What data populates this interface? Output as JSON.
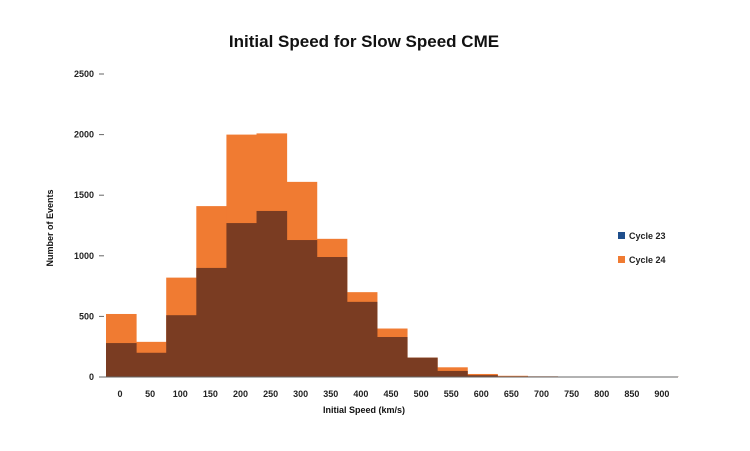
{
  "chart_data": {
    "type": "bar",
    "title": "Initial Speed for Slow Speed CME",
    "xlabel": "Initial Speed (km/s)",
    "ylabel": "Number of Events",
    "ylim": [
      0,
      2500
    ],
    "yticks": [
      "0",
      "500",
      "1000",
      "1500",
      "2000",
      "2500"
    ],
    "categories": [
      "0",
      "50",
      "100",
      "150",
      "200",
      "250",
      "300",
      "350",
      "400",
      "450",
      "500",
      "550",
      "600",
      "650",
      "700",
      "750",
      "800",
      "850",
      "900"
    ],
    "series": [
      {
        "name": "Cycle 23",
        "color": "#1f4e8c",
        "values": [
          280,
          200,
          510,
          900,
          1270,
          1370,
          1130,
          990,
          620,
          330,
          160,
          50,
          15,
          5,
          5,
          3,
          2,
          2,
          2
        ]
      },
      {
        "name": "Cycle 24",
        "color": "#f07b32",
        "values": [
          520,
          290,
          820,
          1410,
          2000,
          2010,
          1610,
          1140,
          700,
          400,
          160,
          80,
          25,
          10,
          5,
          4,
          3,
          3,
          3
        ]
      }
    ],
    "overlap_color": "#7a3c22",
    "legend_position": "right"
  }
}
